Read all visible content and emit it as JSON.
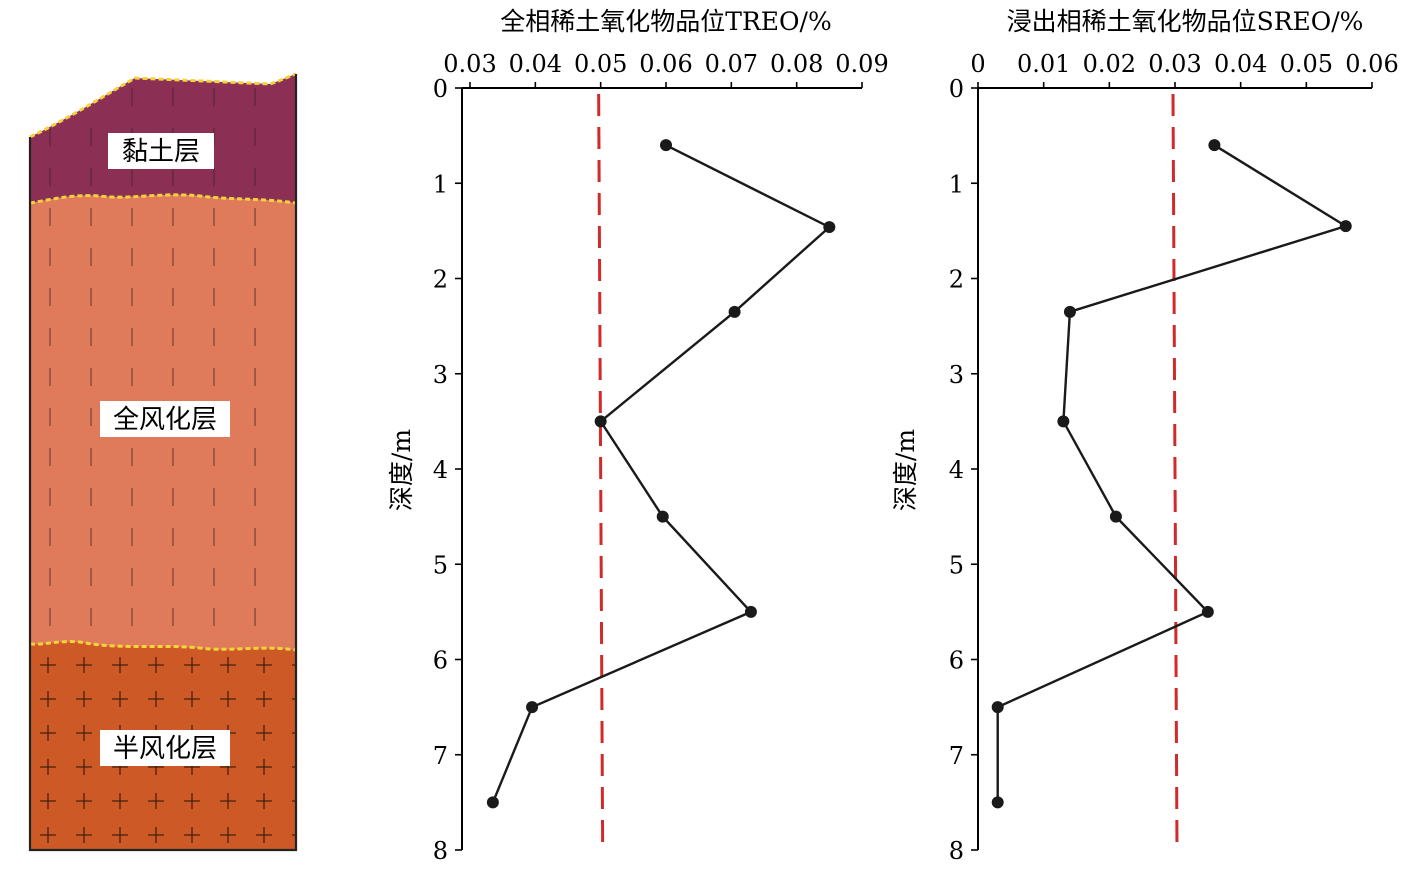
{
  "colors": {
    "clay": "#8c2f55",
    "fully_weathered": "#df7a5a",
    "semi_weathered": "#cd5a26",
    "boundary": "#f3d23a",
    "cutoff": "#d12a2a",
    "series": "#1a1a1a"
  },
  "profile": {
    "layers": [
      {
        "name": "黏土层",
        "fill": "clay",
        "pattern": "vertical-dash"
      },
      {
        "name": "全风化层",
        "fill": "fully_weathered",
        "pattern": "vertical-dash"
      },
      {
        "name": "半风化层",
        "fill": "semi_weathered",
        "pattern": "cross"
      }
    ]
  },
  "chart_data": [
    {
      "type": "line",
      "title": "全相稀土氧化物品位TREO/%",
      "xlabel": "全相稀土氧化物品位TREO/%",
      "ylabel": "深度/m",
      "xlim": [
        0.03,
        0.09
      ],
      "xticks": [
        "0.03",
        "0.04",
        "0.05",
        "0.06",
        "0.07",
        "0.08",
        "0.09"
      ],
      "ylim": [
        0,
        8
      ],
      "yticks": [
        "0",
        "1",
        "2",
        "3",
        "4",
        "5",
        "6",
        "7",
        "8"
      ],
      "y_inverted": true,
      "grid": false,
      "reference_line": {
        "x": 0.05,
        "style": "dashed",
        "color": "cutoff"
      },
      "series": [
        {
          "points": [
            {
              "x": 0.06,
              "y": 0.6
            },
            {
              "x": 0.085,
              "y": 1.46
            },
            {
              "x": 0.0705,
              "y": 2.35
            },
            {
              "x": 0.05,
              "y": 3.5
            },
            {
              "x": 0.0595,
              "y": 4.5
            },
            {
              "x": 0.073,
              "y": 5.5
            },
            {
              "x": 0.0395,
              "y": 6.5
            },
            {
              "x": 0.0335,
              "y": 7.5
            }
          ]
        }
      ]
    },
    {
      "type": "line",
      "title": "浸出相稀土氧化物品位SREO/%",
      "xlabel": "浸出相稀土氧化物品位SREO/%",
      "ylabel": "深度/m",
      "xlim": [
        0,
        0.06
      ],
      "xticks": [
        "0",
        "0.01",
        "0.02",
        "0.03",
        "0.04",
        "0.05",
        "0.06"
      ],
      "ylim": [
        0,
        8
      ],
      "yticks": [
        "0",
        "1",
        "2",
        "3",
        "4",
        "5",
        "6",
        "7",
        "8"
      ],
      "y_inverted": true,
      "grid": false,
      "reference_line": {
        "x": 0.03,
        "style": "dashed",
        "color": "cutoff"
      },
      "series": [
        {
          "points": [
            {
              "x": 0.036,
              "y": 0.6
            },
            {
              "x": 0.056,
              "y": 1.45
            },
            {
              "x": 0.014,
              "y": 2.35
            },
            {
              "x": 0.013,
              "y": 3.5
            },
            {
              "x": 0.021,
              "y": 4.5
            },
            {
              "x": 0.035,
              "y": 5.5
            },
            {
              "x": 0.003,
              "y": 6.5
            },
            {
              "x": 0.003,
              "y": 7.5
            }
          ]
        }
      ]
    }
  ]
}
